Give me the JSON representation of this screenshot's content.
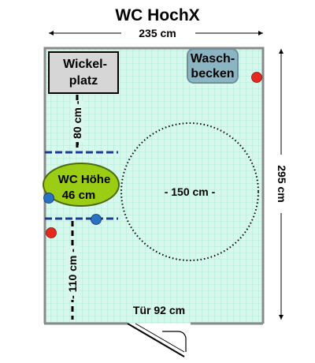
{
  "title": "WC HochX",
  "dimensions": {
    "width_label": "235 cm",
    "height_label": "295 cm",
    "circle_label": "- 150 cm -",
    "upper_clearance_label": "- 80 cm -",
    "lower_clearance_label": "- 110 cm -",
    "door_label": "Tür 92 cm"
  },
  "fixtures": {
    "changing_table": [
      "Wickel-",
      "platz"
    ],
    "washbasin": [
      "Wasch-",
      "becken"
    ],
    "toilet": [
      "WC Höhe",
      "46 cm"
    ]
  },
  "colors": {
    "floor": "#d9f7ec",
    "tile_lines": "#9fe8d0",
    "wall": "#8a8a8a",
    "changing_table_fill": "#d6d6d6",
    "washbasin_fill": "#8bb5c3",
    "toilet_fill": "#9acd14",
    "grab_bar": "#1e3a9a",
    "dot_red": "#e8281f",
    "dot_blue": "#2a72c4"
  }
}
